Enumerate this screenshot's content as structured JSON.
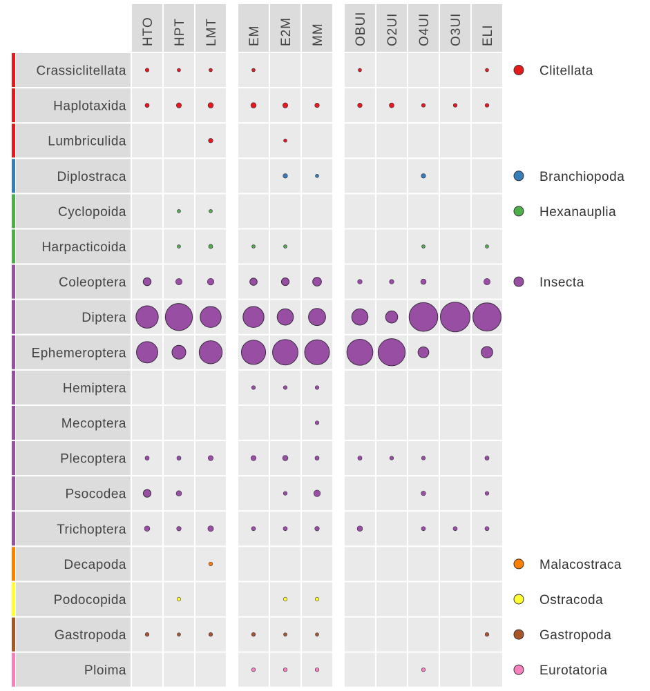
{
  "chart_data": {
    "type": "bubble-matrix",
    "column_groups": [
      [
        "HTO",
        "HPT",
        "LMT"
      ],
      [
        "EM",
        "E2M",
        "MM"
      ],
      [
        "OBUI",
        "O2UI",
        "O4UI",
        "O3UI",
        "ELI"
      ]
    ],
    "columns": [
      "HTO",
      "HPT",
      "LMT",
      "EM",
      "E2M",
      "MM",
      "OBUI",
      "O2UI",
      "O4UI",
      "O3UI",
      "ELI"
    ],
    "classes": [
      {
        "name": "Clitellata",
        "color": "#e41a1c"
      },
      {
        "name": "Branchiopoda",
        "color": "#377eb8"
      },
      {
        "name": "Hexanauplia",
        "color": "#4daf4a"
      },
      {
        "name": "Insecta",
        "color": "#984ea3"
      },
      {
        "name": "Malacostraca",
        "color": "#ff7f00"
      },
      {
        "name": "Ostracoda",
        "color": "#ffff33"
      },
      {
        "name": "Gastropoda",
        "color": "#a65628"
      },
      {
        "name": "Eurotatoria",
        "color": "#f781bf"
      }
    ],
    "rows": [
      {
        "name": "Crassiclitellata",
        "class": "Clitellata",
        "values": [
          0.1,
          0.08,
          0.08,
          0.08,
          0,
          0,
          0.08,
          0,
          0,
          0,
          0.08
        ]
      },
      {
        "name": "Haplotaxida",
        "class": "Clitellata",
        "values": [
          0.12,
          0.18,
          0.2,
          0.2,
          0.18,
          0.14,
          0.14,
          0.16,
          0.1,
          0.1,
          0.1
        ]
      },
      {
        "name": "Lumbriculida",
        "class": "Clitellata",
        "values": [
          0,
          0,
          0.14,
          0,
          0.08,
          0,
          0,
          0,
          0,
          0,
          0
        ]
      },
      {
        "name": "Diplostraca",
        "class": "Branchiopoda",
        "values": [
          0,
          0,
          0,
          0,
          0.14,
          0.08,
          0,
          0,
          0.14,
          0,
          0
        ]
      },
      {
        "name": "Cyclopoida",
        "class": "Hexanauplia",
        "values": [
          0,
          0.08,
          0.08,
          0,
          0,
          0,
          0,
          0,
          0,
          0,
          0
        ]
      },
      {
        "name": "Harpacticoida",
        "class": "Hexanauplia",
        "values": [
          0,
          0.08,
          0.12,
          0.08,
          0.08,
          0,
          0,
          0,
          0.08,
          0,
          0.08
        ]
      },
      {
        "name": "Coleoptera",
        "class": "Insecta",
        "values": [
          0.42,
          0.28,
          0.3,
          0.36,
          0.4,
          0.52,
          0.14,
          0.14,
          0.2,
          0,
          0.28
        ]
      },
      {
        "name": "Diptera",
        "class": "Insecta",
        "values": [
          3.4,
          5.0,
          3.0,
          3.0,
          1.8,
          2.0,
          1.8,
          1.0,
          5.6,
          6.0,
          5.4
        ]
      },
      {
        "name": "Ephemeroptera",
        "class": "Insecta",
        "values": [
          3.1,
          1.3,
          3.6,
          4.0,
          4.4,
          4.2,
          4.6,
          5.0,
          0.8,
          0,
          0.9
        ]
      },
      {
        "name": "Hemiptera",
        "class": "Insecta",
        "values": [
          0,
          0,
          0,
          0.1,
          0.1,
          0.1,
          0,
          0,
          0,
          0,
          0
        ]
      },
      {
        "name": "Mecoptera",
        "class": "Insecta",
        "values": [
          0,
          0,
          0,
          0,
          0,
          0.1,
          0,
          0,
          0,
          0,
          0
        ]
      },
      {
        "name": "Plecoptera",
        "class": "Insecta",
        "values": [
          0.12,
          0.12,
          0.18,
          0.18,
          0.2,
          0.12,
          0.12,
          0.1,
          0.1,
          0,
          0.12
        ]
      },
      {
        "name": "Psocodea",
        "class": "Insecta",
        "values": [
          0.4,
          0.2,
          0,
          0,
          0.1,
          0.3,
          0,
          0,
          0.14,
          0,
          0.1
        ]
      },
      {
        "name": "Trichoptera",
        "class": "Insecta",
        "values": [
          0.2,
          0.14,
          0.22,
          0.12,
          0.12,
          0.14,
          0.2,
          0,
          0.12,
          0.12,
          0.12
        ]
      },
      {
        "name": "Decapoda",
        "class": "Malacostraca",
        "values": [
          0,
          0,
          0.1,
          0,
          0,
          0,
          0,
          0,
          0,
          0,
          0
        ]
      },
      {
        "name": "Podocopida",
        "class": "Ostracoda",
        "values": [
          0,
          0.1,
          0,
          0,
          0.1,
          0.1,
          0,
          0,
          0,
          0,
          0
        ]
      },
      {
        "name": "Gastropoda",
        "class": "Gastropoda",
        "values": [
          0.1,
          0.08,
          0.1,
          0.1,
          0.08,
          0.08,
          0,
          0,
          0,
          0,
          0.1
        ]
      },
      {
        "name": "Ploima",
        "class": "Eurotatoria",
        "values": [
          0,
          0,
          0,
          0.1,
          0.1,
          0.1,
          0,
          0,
          0.1,
          0,
          0
        ]
      }
    ],
    "legend_position": "right",
    "grid": false
  }
}
